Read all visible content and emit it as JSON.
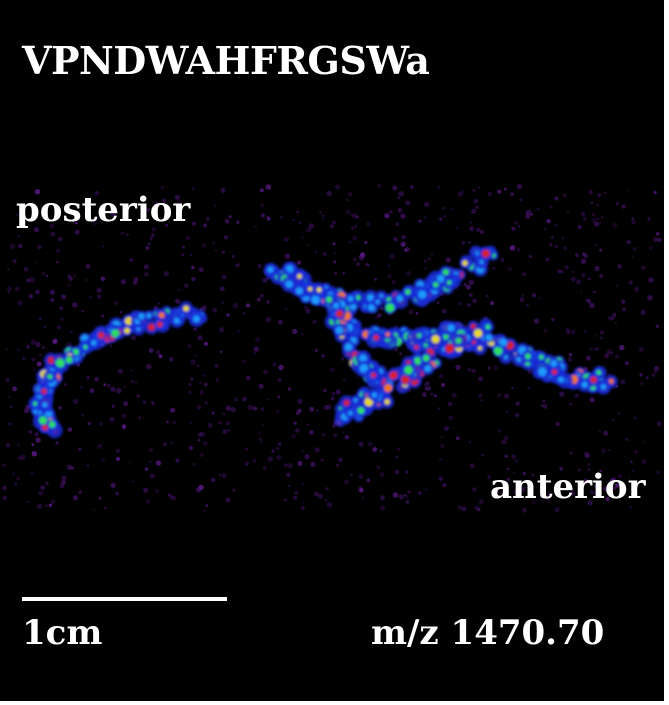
{
  "image": {
    "title": "VPNDWAHFRGSWa",
    "orientation_labels": {
      "posterior": "posterior",
      "anterior": "anterior"
    },
    "scale_bar": {
      "label": "1cm"
    },
    "mz_label": "m/z 1470.70",
    "colormap": [
      "#000000",
      "#3a0f5a",
      "#1a2bd6",
      "#1aa0ff",
      "#2ee85a",
      "#f2e21a",
      "#ff7a00",
      "#e0201a"
    ],
    "background_color": "#000000",
    "text_color": "#ffffff"
  }
}
